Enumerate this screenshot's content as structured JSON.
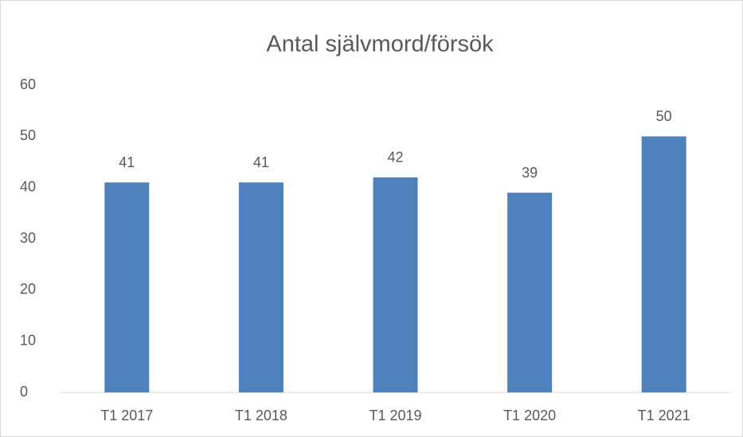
{
  "chart_data": {
    "type": "bar",
    "title": "Antal självmord/försök",
    "categories": [
      "T1 2017",
      "T1 2018",
      "T1 2019",
      "T1 2020",
      "T1 2021"
    ],
    "values": [
      41,
      41,
      42,
      39,
      50
    ],
    "color": "#4f81bd",
    "ylim": [
      0,
      60
    ],
    "yticks": [
      0,
      10,
      20,
      30,
      40,
      50,
      60
    ],
    "grid": false
  }
}
